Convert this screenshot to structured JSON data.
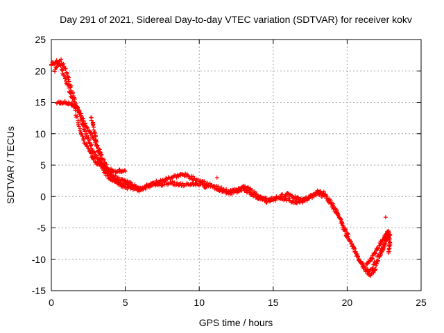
{
  "chart_data": {
    "type": "scatter",
    "title": "Day 291 of 2021, Sidereal Day-to-day VTEC variation (SDTVAR) for receiver kokv",
    "xlabel": "GPS time / hours",
    "ylabel": "SDTVAR / TECUs",
    "xlim": [
      0,
      25
    ],
    "ylim": [
      -15,
      25
    ],
    "x_ticks": [
      0,
      5,
      10,
      15,
      20,
      25
    ],
    "y_ticks": [
      -15,
      -10,
      -5,
      0,
      5,
      10,
      15,
      20,
      25
    ],
    "x_tick_labels": [
      "0",
      "5",
      "10",
      "15",
      "20",
      "25"
    ],
    "y_tick_labels": [
      "-15",
      "-10",
      "-5",
      "0",
      "5",
      "10",
      "15",
      "20",
      "25"
    ],
    "grid": true,
    "marker": "+",
    "series": [
      {
        "name": "SDTVAR",
        "color": "#ff0000",
        "tracks": [
          [
            [
              0.0,
              21.0
            ],
            [
              0.3,
              21.5
            ],
            [
              0.6,
              21.0
            ],
            [
              0.9,
              19.0
            ],
            [
              1.2,
              17.0
            ],
            [
              1.5,
              15.0
            ],
            [
              1.8,
              12.0
            ],
            [
              2.1,
              9.5
            ],
            [
              2.4,
              8.0
            ],
            [
              2.7,
              6.5
            ],
            [
              3.0,
              5.5
            ],
            [
              3.5,
              4.5
            ],
            [
              4.0,
              3.5
            ],
            [
              4.5,
              2.8
            ],
            [
              5.0,
              2.5
            ],
            [
              5.5,
              1.8
            ],
            [
              6.0,
              1.3
            ],
            [
              6.5,
              1.5
            ],
            [
              7.0,
              2.2
            ],
            [
              7.5,
              2.5
            ],
            [
              8.0,
              3.0
            ],
            [
              8.5,
              3.3
            ],
            [
              9.0,
              3.5
            ],
            [
              9.5,
              3.0
            ],
            [
              10.0,
              2.5
            ],
            [
              10.5,
              2.0
            ],
            [
              11.0,
              1.5
            ],
            [
              11.5,
              1.0
            ],
            [
              12.0,
              0.8
            ],
            [
              12.5,
              1.0
            ],
            [
              13.0,
              1.2
            ],
            [
              13.5,
              0.5
            ],
            [
              14.0,
              -0.2
            ],
            [
              14.5,
              -0.5
            ],
            [
              15.0,
              -0.3
            ],
            [
              15.5,
              0.0
            ],
            [
              16.0,
              0.5
            ],
            [
              16.5,
              -0.2
            ],
            [
              17.0,
              -0.8
            ],
            [
              17.5,
              0.0
            ],
            [
              18.0,
              0.5
            ],
            [
              18.5,
              0.0
            ],
            [
              19.0,
              -1.5
            ],
            [
              19.5,
              -3.5
            ],
            [
              20.0,
              -6.0
            ],
            [
              20.5,
              -8.5
            ],
            [
              21.0,
              -11.0
            ],
            [
              21.5,
              -12.0
            ],
            [
              22.0,
              -10.0
            ],
            [
              22.5,
              -7.5
            ],
            [
              22.9,
              -6.0
            ]
          ],
          [
            [
              0.2,
              20.0
            ],
            [
              0.6,
              21.8
            ],
            [
              1.0,
              20.0
            ],
            [
              1.3,
              17.5
            ],
            [
              1.6,
              15.0
            ],
            [
              1.9,
              13.5
            ],
            [
              2.2,
              11.0
            ],
            [
              2.5,
              9.0
            ],
            [
              2.8,
              7.5
            ],
            [
              3.1,
              6.0
            ],
            [
              3.5,
              5.0
            ],
            [
              4.0,
              4.2
            ],
            [
              4.5,
              4.0
            ],
            [
              5.0,
              4.0
            ]
          ],
          [
            [
              0.4,
              15.0
            ],
            [
              0.8,
              15.0
            ],
            [
              1.2,
              14.8
            ],
            [
              1.6,
              14.5
            ],
            [
              2.0,
              13.0
            ],
            [
              2.3,
              11.5
            ],
            [
              2.7,
              10.0
            ],
            [
              3.0,
              8.5
            ],
            [
              3.4,
              6.5
            ],
            [
              3.8,
              4.5
            ],
            [
              4.2,
              3.0
            ],
            [
              4.6,
              2.0
            ],
            [
              5.0,
              1.5
            ],
            [
              5.5,
              1.2
            ],
            [
              6.0,
              1.0
            ]
          ],
          [
            [
              2.7,
              12.5
            ],
            [
              2.9,
              10.5
            ],
            [
              3.1,
              8.0
            ],
            [
              3.3,
              6.0
            ],
            [
              3.6,
              4.0
            ],
            [
              4.0,
              2.8
            ],
            [
              4.5,
              2.2
            ],
            [
              5.0,
              2.0
            ],
            [
              5.5,
              1.5
            ],
            [
              6.0,
              1.2
            ],
            [
              6.5,
              1.8
            ],
            [
              7.0,
              2.0
            ],
            [
              7.5,
              2.0
            ],
            [
              8.0,
              2.2
            ],
            [
              8.5,
              2.0
            ],
            [
              9.0,
              1.8
            ],
            [
              9.5,
              2.0
            ],
            [
              10.0,
              2.0
            ],
            [
              10.5,
              1.5
            ]
          ],
          [
            [
              11.0,
              1.5
            ],
            [
              11.5,
              1.2
            ],
            [
              12.0,
              0.5
            ],
            [
              12.5,
              0.8
            ],
            [
              13.0,
              1.5
            ],
            [
              13.5,
              1.0
            ],
            [
              14.0,
              0.0
            ],
            [
              14.5,
              -0.8
            ],
            [
              15.0,
              -0.5
            ],
            [
              15.5,
              -0.3
            ],
            [
              16.0,
              -0.5
            ],
            [
              16.5,
              -1.0
            ],
            [
              17.0,
              -0.5
            ],
            [
              17.5,
              -0.2
            ],
            [
              18.0,
              0.8
            ],
            [
              18.4,
              0.5
            ],
            [
              18.8,
              -0.5
            ],
            [
              19.2,
              -2.0
            ],
            [
              19.6,
              -4.0
            ],
            [
              20.0,
              -6.5
            ],
            [
              20.4,
              -8.0
            ],
            [
              20.8,
              -10.0
            ],
            [
              21.2,
              -11.5
            ],
            [
              21.6,
              -12.5
            ],
            [
              21.9,
              -11.5
            ],
            [
              22.2,
              -9.5
            ],
            [
              22.5,
              -8.0
            ],
            [
              22.8,
              -6.0
            ]
          ],
          [
            [
              21.3,
              -11.0
            ],
            [
              21.6,
              -10.0
            ],
            [
              21.9,
              -9.0
            ],
            [
              22.2,
              -7.5
            ],
            [
              22.5,
              -6.5
            ],
            [
              22.8,
              -5.5
            ],
            [
              22.9,
              -7.5
            ],
            [
              22.8,
              -9.0
            ]
          ]
        ],
        "outliers": [
          [
            11.2,
            3.0
          ],
          [
            22.6,
            -3.3
          ]
        ]
      }
    ]
  }
}
